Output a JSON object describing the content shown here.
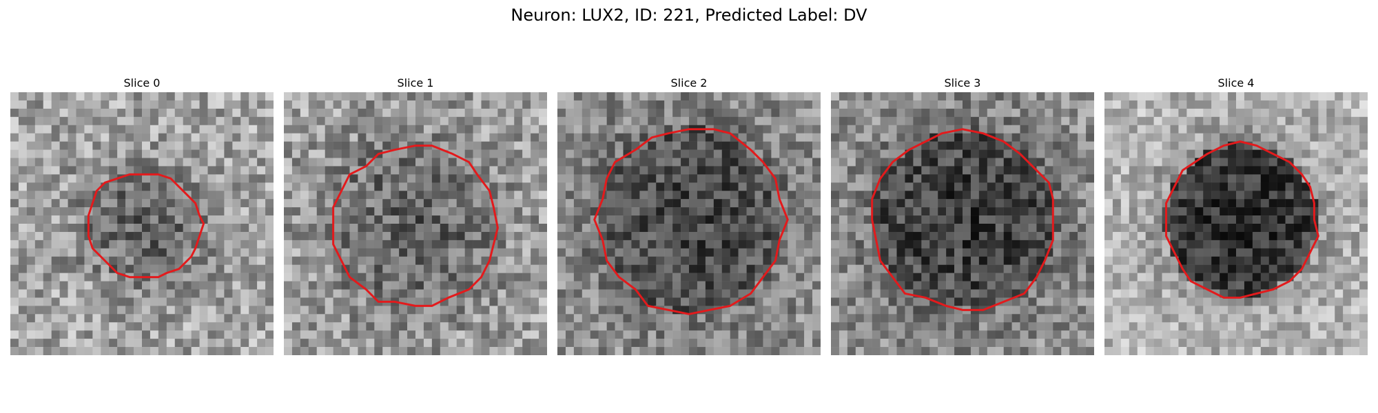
{
  "figure": {
    "title": "Neuron: LUX2, ID: 221, Predicted Label: DV"
  },
  "colors": {
    "contour": "#e31a1c",
    "image_colormap": "grayscale"
  },
  "panels": [
    {
      "title": "Slice 0"
    },
    {
      "title": "Slice 1"
    },
    {
      "title": "Slice 2"
    },
    {
      "title": "Slice 3"
    },
    {
      "title": "Slice 4"
    }
  ]
}
